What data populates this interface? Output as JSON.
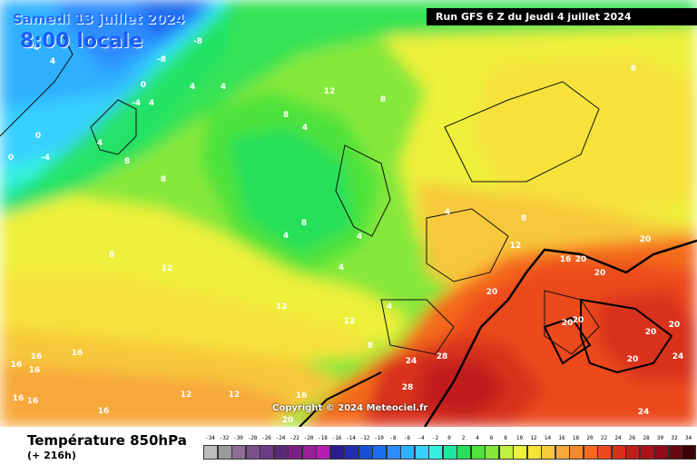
{
  "header": {
    "date": "Samedi 13 juillet 2024",
    "time": "8:00 locale",
    "run": "Run GFS 6 Z du Jeudi 4 juillet 2024"
  },
  "footer": {
    "variable": "Température 850hPa",
    "lead": "(+ 216h)",
    "copyright": "Copyright © 2024 Meteociel.fr"
  },
  "legend": {
    "values": [
      "-34",
      "-32",
      "-30",
      "-28",
      "-26",
      "-24",
      "-22",
      "-20",
      "-18",
      "-16",
      "-14",
      "-12",
      "-10",
      "-8",
      "-6",
      "-4",
      "-2",
      "0",
      "2",
      "4",
      "6",
      "8",
      "10",
      "12",
      "14",
      "16",
      "18",
      "20",
      "22",
      "24",
      "26",
      "28",
      "30",
      "32",
      "34"
    ],
    "colors": [
      "#bdbdbd",
      "#9a9a9a",
      "#8b6d96",
      "#7a4f8c",
      "#6c3b86",
      "#5a2a78",
      "#7c1f86",
      "#9a1f98",
      "#b51fb4",
      "#2b1d8f",
      "#1f2fb0",
      "#1a4fd6",
      "#1e6cf0",
      "#2f8cff",
      "#2fb0ff",
      "#38d0ff",
      "#35f0e0",
      "#20e6a0",
      "#26e05a",
      "#4ee23a",
      "#86e83a",
      "#bff03a",
      "#eef03a",
      "#f7e23a",
      "#f7c83a",
      "#f7a83a",
      "#f78a2a",
      "#f46a1e",
      "#ec4a1a",
      "#d8301a",
      "#c01e1a",
      "#a8141a",
      "#8e0c18",
      "#6a0812",
      "#3a0208"
    ]
  },
  "map_labels": [
    "-4",
    "4",
    "-8",
    "-8",
    "0",
    "-4",
    "4",
    "4",
    "4",
    "0",
    "-4",
    "0",
    "4",
    "8",
    "12",
    "8",
    "4",
    "8",
    "8",
    "8",
    "8",
    "4",
    "4",
    "4",
    "4",
    "8",
    "4",
    "8",
    "12",
    "16",
    "20",
    "20",
    "20",
    "20",
    "20",
    "20",
    "20",
    "20",
    "24",
    "28",
    "24",
    "28",
    "24",
    "20",
    "12",
    "12",
    "16",
    "16",
    "16",
    "16",
    "16",
    "16",
    "16",
    "12",
    "12",
    "12",
    "16",
    "20",
    "8"
  ]
}
